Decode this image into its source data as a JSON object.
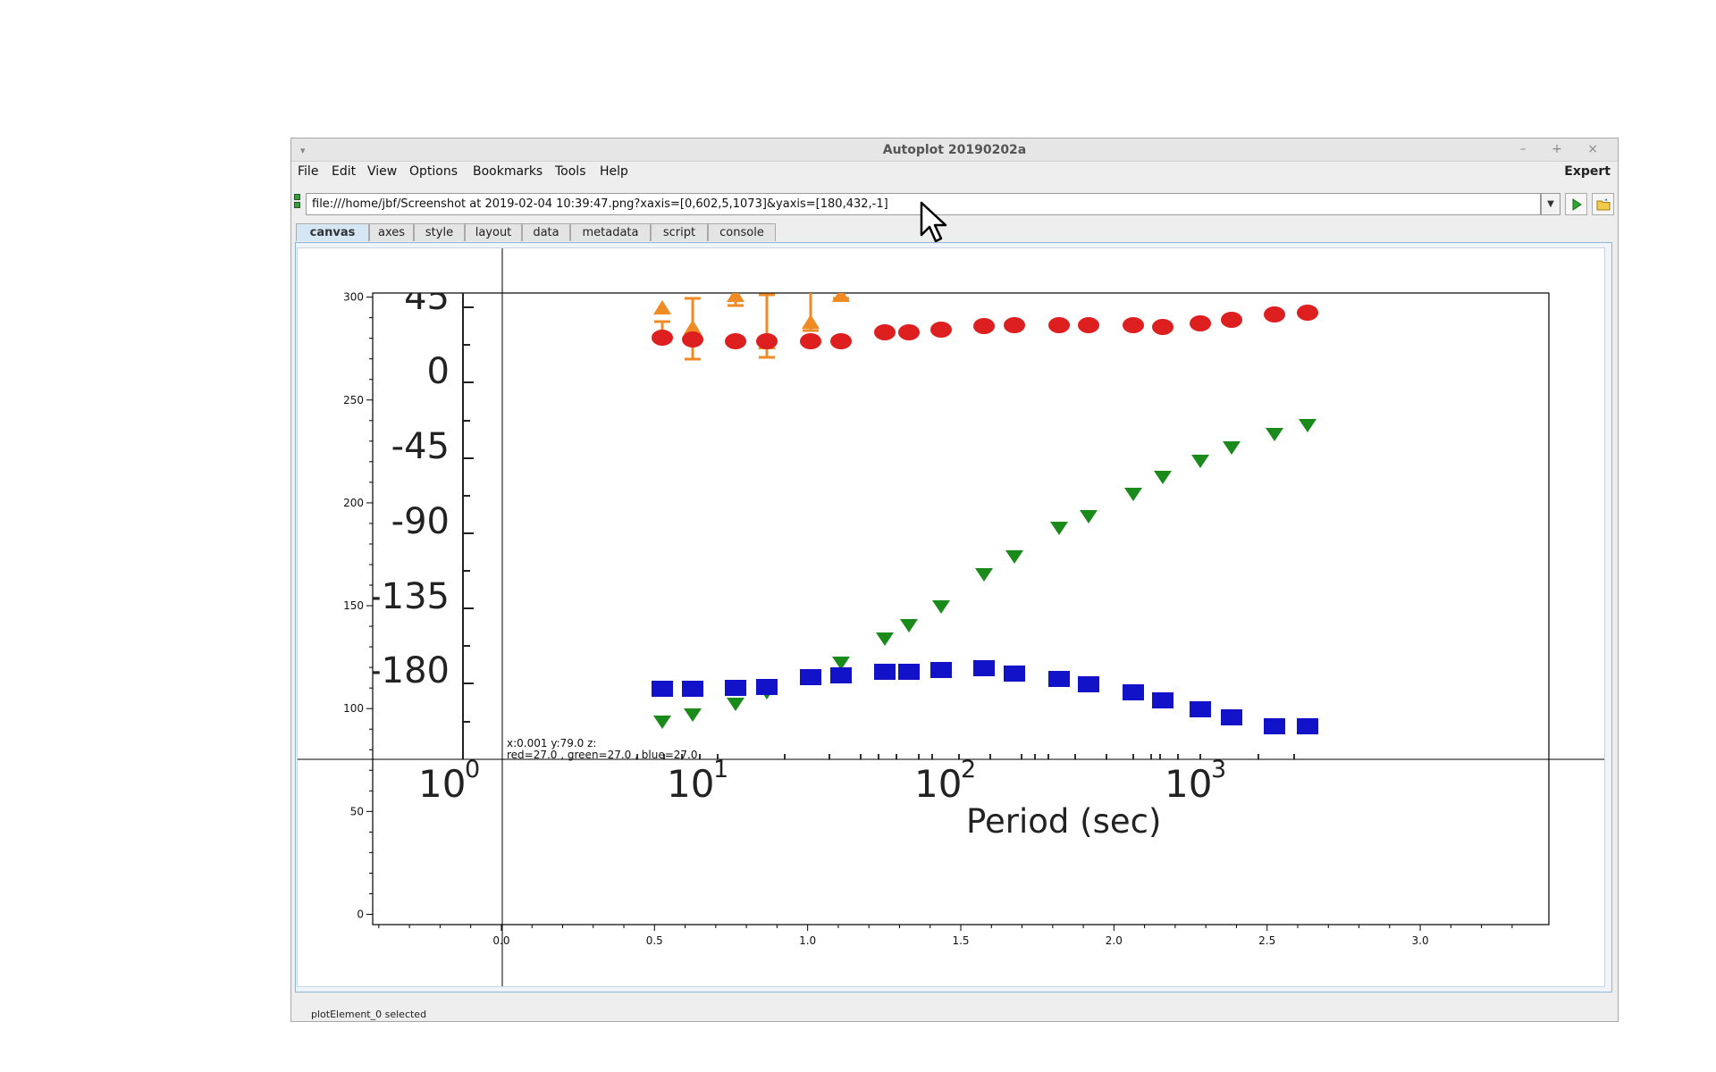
{
  "window": {
    "title": "Autoplot 20190202a",
    "buttons": [
      "–",
      "+",
      "×"
    ]
  },
  "menu": {
    "items": [
      "File",
      "Edit",
      "View",
      "Options",
      "Bookmarks",
      "Tools",
      "Help"
    ],
    "expert_label": "Expert"
  },
  "address": {
    "value": "file:///home/jbf/Screenshot at 2019-02-04 10:39:47.png?xaxis=[0,602,5,1073]&yaxis=[180,432,-1]"
  },
  "tabs": [
    "canvas",
    "axes",
    "style",
    "layout",
    "data",
    "metadata",
    "script",
    "console"
  ],
  "active_tab": "canvas",
  "status": {
    "text": "plotElement_0 selected"
  },
  "plot": {
    "readout_line1": "x:0.001  y:79.0  z:",
    "readout_line2": "red=27.0 , green=27.0 , blue=27.0",
    "x_ticks": [
      "0.0",
      "0.5",
      "1.0",
      "1.5",
      "2.0",
      "2.5",
      "3.0"
    ],
    "y_ticks": [
      "0",
      "50",
      "100",
      "150",
      "200",
      "250",
      "300"
    ],
    "x_range": [
      -0.42,
      3.42
    ],
    "y_range": [
      -5,
      302
    ],
    "image": {
      "y_labels": [
        "45",
        "0",
        "-45",
        "-90",
        "-135",
        "-180"
      ],
      "x_label_base": "10",
      "x_label_exponents": [
        "0",
        "1",
        "2",
        "3"
      ],
      "x_title": "Period (sec)",
      "colors": {
        "red": "#dd1f1f",
        "green": "#1a8a1a",
        "blue": "#1212c8",
        "orange": "#f08a24"
      }
    }
  }
}
